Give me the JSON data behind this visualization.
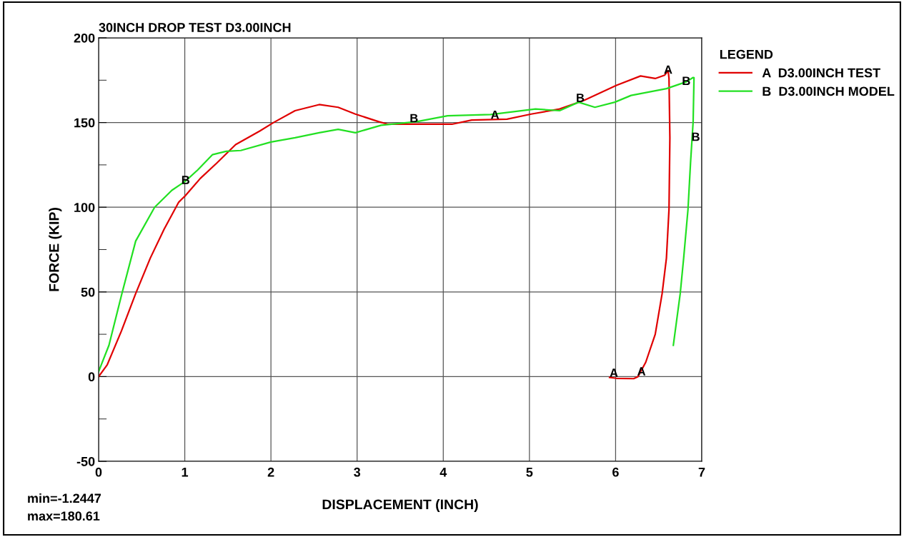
{
  "chart_data": {
    "type": "line",
    "title": "30INCH DROP TEST D3.00INCH",
    "xlabel": "DISPLACEMENT (INCH)",
    "ylabel": "FORCE (KIP)",
    "legend_title": "LEGEND",
    "legend": "right",
    "grid": true,
    "marker": "none",
    "line_style": "solid",
    "xlim": [
      0,
      7
    ],
    "xticks": [
      0,
      1,
      2,
      3,
      4,
      5,
      6,
      7
    ],
    "ylim": [
      -50,
      200
    ],
    "yticks": [
      -50,
      {
        "value": -25,
        "label": null
      },
      0,
      {
        "value": 25,
        "label": null
      },
      50,
      {
        "value": 75,
        "label": null
      },
      100,
      {
        "value": 125,
        "label": null
      },
      150,
      {
        "value": 175,
        "label": null
      },
      200
    ],
    "series": [
      {
        "name": "A  D3.00INCH TEST",
        "color": "#e00000",
        "x": [
          0,
          0.1,
          0.265,
          0.43,
          0.6,
          0.76,
          0.93,
          1.01,
          1.18,
          1.37,
          1.59,
          1.87,
          2.03,
          2.28,
          2.56,
          2.78,
          2.98,
          3.25,
          3.36,
          3.69,
          4.1,
          4.33,
          4.74,
          5.02,
          5.35,
          5.63,
          6.01,
          6.29,
          6.46,
          6.57,
          6.61,
          6.62,
          6.63,
          6.62,
          6.59,
          6.54,
          6.46,
          6.35,
          6.26,
          6.21,
          6.01,
          5.93
        ],
        "values": [
          0,
          7,
          27,
          49,
          70,
          87,
          103,
          107,
          117,
          126,
          137,
          145,
          150,
          157,
          160.6,
          159,
          155,
          150.5,
          149,
          149,
          149,
          151.5,
          152,
          155,
          158,
          163,
          172,
          177.5,
          176,
          178,
          180.6,
          176,
          141,
          99,
          70,
          49,
          25,
          8.5,
          0,
          -1.2,
          -1,
          -0.5
        ]
      },
      {
        "name": "B  D3.00INCH MODEL",
        "color": "#22e022",
        "x": [
          0,
          0.12,
          0.27,
          0.43,
          0.65,
          0.85,
          1.01,
          1.15,
          1.32,
          1.48,
          1.65,
          2.0,
          2.28,
          2.56,
          2.78,
          2.98,
          3.28,
          3.69,
          4.05,
          4.55,
          5.07,
          5.35,
          5.57,
          5.76,
          5.99,
          6.18,
          6.59,
          6.82,
          6.9,
          6.91,
          6.9,
          6.87,
          6.84,
          6.79,
          6.75,
          6.67
        ],
        "values": [
          3,
          18.5,
          49,
          80,
          100,
          110,
          115.5,
          122,
          131,
          133,
          133.5,
          138.5,
          141,
          144,
          146,
          144,
          148.4,
          150.5,
          154,
          154.7,
          158,
          157,
          162,
          159,
          162,
          166,
          170,
          174,
          176.6,
          176.5,
          150.5,
          126.5,
          98.6,
          70,
          49,
          18.5
        ]
      }
    ],
    "annotations": [
      {
        "text": "A",
        "x": 6.61,
        "y": 180.6
      },
      {
        "text": "A",
        "x": 5.98,
        "y": 1.7
      },
      {
        "text": "A",
        "x": 6.3,
        "y": 2.5
      },
      {
        "text": "A",
        "x": 4.6,
        "y": 154
      },
      {
        "text": "B",
        "x": 1.01,
        "y": 115.5
      },
      {
        "text": "B",
        "x": 3.66,
        "y": 152
      },
      {
        "text": "B",
        "x": 5.59,
        "y": 164
      },
      {
        "text": "B",
        "x": 6.82,
        "y": 174
      },
      {
        "text": "B",
        "x": 6.93,
        "y": 141
      },
      "min=-1.2447",
      "max=180.61"
    ]
  }
}
